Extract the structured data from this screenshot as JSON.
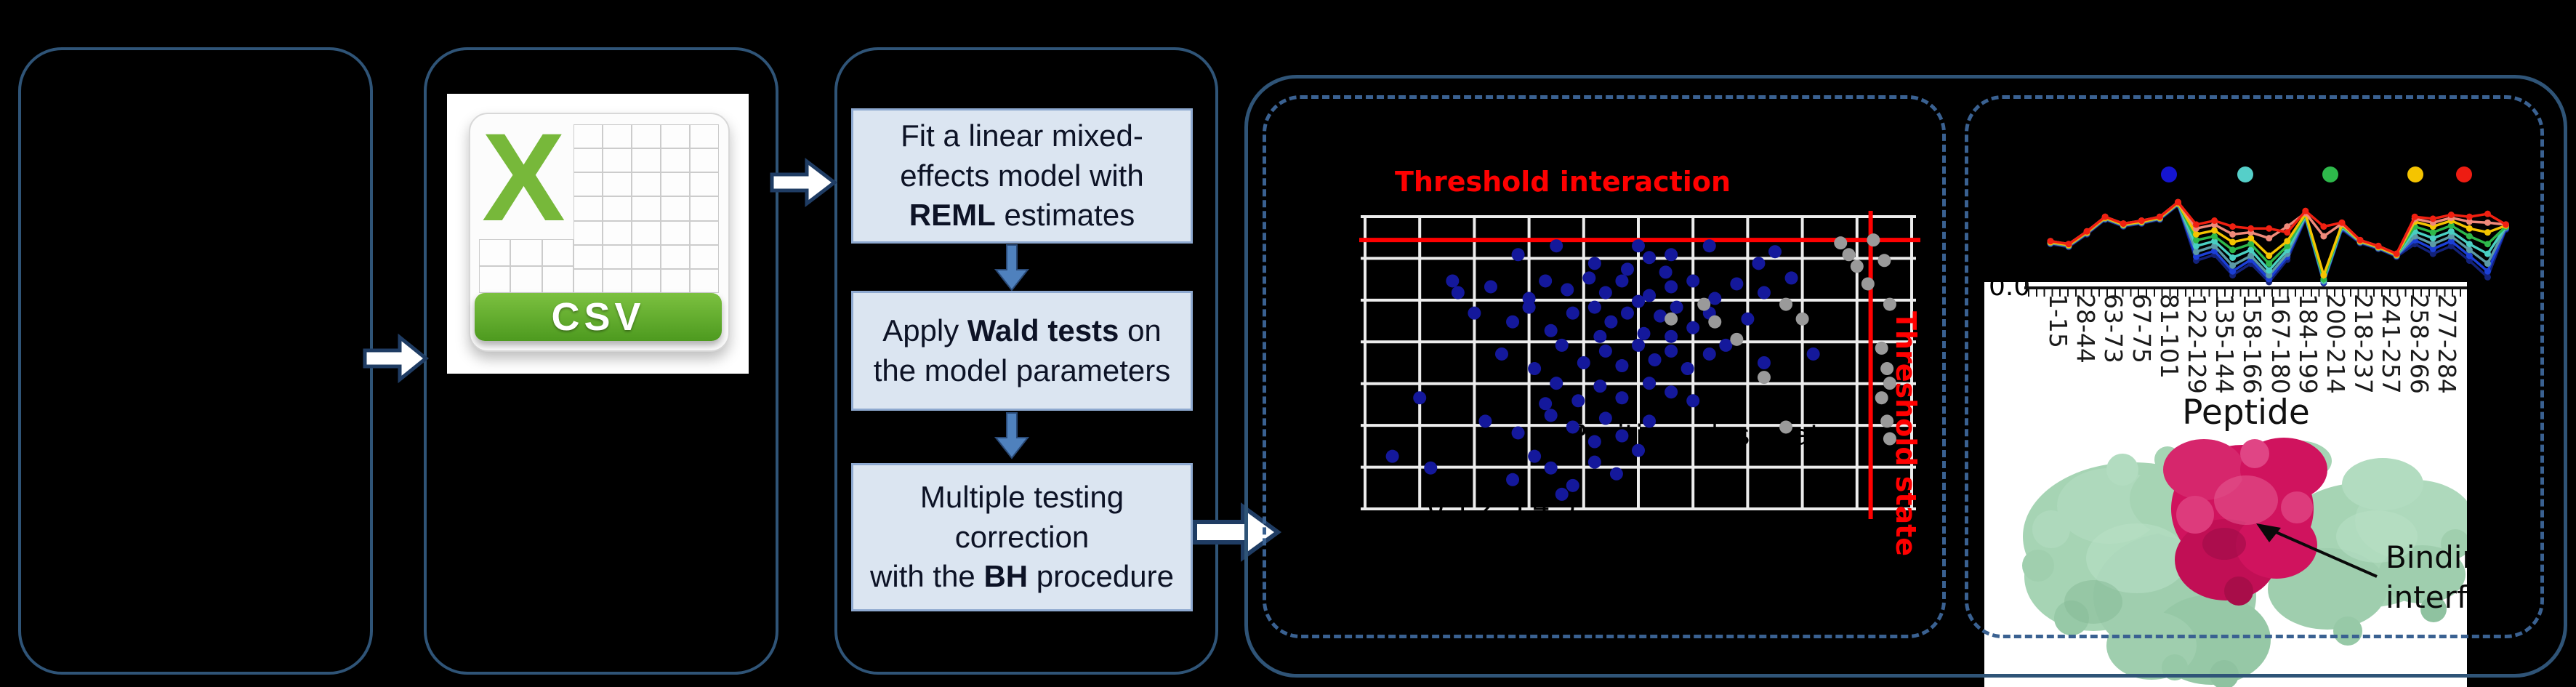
{
  "colors": {
    "background": "#000000",
    "box_border": "#2f5477",
    "dashed_border": "#3a6191",
    "step_fill": "#dbe5f1",
    "step_border": "#8ea9d0",
    "step_text": "#0d1326",
    "flow_arrow_fill": "#ffffff",
    "flow_arrow_stroke": "#1f3c63",
    "down_arrow_fill": "#4f81bd",
    "threshold_red": "#ff0000",
    "scatter_point_blue": "#14189b",
    "scatter_point_gray": "#9a9a9a",
    "grid_line": "#ececec",
    "csv_green": "#77b83a"
  },
  "csv": {
    "x_glyph": "X",
    "banner_label": "CSV"
  },
  "pipeline": {
    "steps": [
      {
        "name": "fit-model",
        "lines": [
          [
            {
              "t": "Fit a linear mixed-",
              "b": false
            }
          ],
          [
            {
              "t": "effects model with",
              "b": false
            }
          ],
          [
            {
              "t": "REML",
              "b": true
            },
            {
              "t": " estimates",
              "b": false
            }
          ]
        ]
      },
      {
        "name": "wald-tests",
        "lines": [
          [
            {
              "t": "Apply ",
              "b": false
            },
            {
              "t": "Wald tests",
              "b": true
            },
            {
              "t": " on",
              "b": false
            }
          ],
          [
            {
              "t": "the model parameters",
              "b": false
            }
          ]
        ]
      },
      {
        "name": "multiple-testing",
        "lines": [
          [
            {
              "t": "Multiple testing",
              "b": false
            }
          ],
          [
            {
              "t": "correction",
              "b": false
            }
          ],
          [
            {
              "t": "with the ",
              "b": false
            },
            {
              "t": "BH",
              "b": true
            },
            {
              "t": " procedure",
              "b": false
            }
          ]
        ]
      }
    ]
  },
  "chart_data": [
    {
      "id": "interaction_scatter",
      "type": "scatter",
      "title": "Threshold interaction",
      "state_label": "Threshold state",
      "grid": {
        "cols": 10,
        "rows": 7,
        "line_color": "#ececec"
      },
      "threshold_interaction_y": 0.08,
      "threshold_state_x": 0.925,
      "ghost_labels": [
        {
          "text": "Position: close data",
          "x": 0.62,
          "y": 0.78
        },
        {
          "text": "0 1 2 3 4 5",
          "x": 0.25,
          "y": 1.02
        }
      ],
      "series": [
        {
          "name": "significant-peptides",
          "color": "#14189b",
          "points": [
            [
              0.28,
              0.13
            ],
            [
              0.35,
              0.1
            ],
            [
              0.42,
              0.16
            ],
            [
              0.5,
              0.1
            ],
            [
              0.52,
              0.14
            ],
            [
              0.56,
              0.13
            ],
            [
              0.63,
              0.1
            ],
            [
              0.75,
              0.12
            ],
            [
              0.48,
              0.18
            ],
            [
              0.72,
              0.16
            ],
            [
              0.55,
              0.19
            ],
            [
              0.16,
              0.22
            ],
            [
              0.17,
              0.26
            ],
            [
              0.23,
              0.24
            ],
            [
              0.3,
              0.28
            ],
            [
              0.33,
              0.22
            ],
            [
              0.37,
              0.25
            ],
            [
              0.41,
              0.21
            ],
            [
              0.44,
              0.26
            ],
            [
              0.47,
              0.22
            ],
            [
              0.52,
              0.27
            ],
            [
              0.56,
              0.24
            ],
            [
              0.6,
              0.22
            ],
            [
              0.64,
              0.28
            ],
            [
              0.68,
              0.23
            ],
            [
              0.73,
              0.26
            ],
            [
              0.78,
              0.21
            ],
            [
              0.5,
              0.29
            ],
            [
              0.2,
              0.33
            ],
            [
              0.27,
              0.36
            ],
            [
              0.3,
              0.31
            ],
            [
              0.34,
              0.39
            ],
            [
              0.38,
              0.33
            ],
            [
              0.42,
              0.31
            ],
            [
              0.45,
              0.36
            ],
            [
              0.48,
              0.33
            ],
            [
              0.51,
              0.4
            ],
            [
              0.54,
              0.34
            ],
            [
              0.57,
              0.31
            ],
            [
              0.6,
              0.38
            ],
            [
              0.63,
              0.33
            ],
            [
              0.7,
              0.35
            ],
            [
              0.43,
              0.41
            ],
            [
              0.56,
              0.41
            ],
            [
              0.25,
              0.47
            ],
            [
              0.31,
              0.52
            ],
            [
              0.36,
              0.44
            ],
            [
              0.4,
              0.5
            ],
            [
              0.44,
              0.46
            ],
            [
              0.47,
              0.51
            ],
            [
              0.5,
              0.44
            ],
            [
              0.53,
              0.49
            ],
            [
              0.56,
              0.46
            ],
            [
              0.59,
              0.52
            ],
            [
              0.63,
              0.47
            ],
            [
              0.66,
              0.44
            ],
            [
              0.82,
              0.47
            ],
            [
              0.73,
              0.5
            ],
            [
              0.1,
              0.62
            ],
            [
              0.35,
              0.57
            ],
            [
              0.39,
              0.63
            ],
            [
              0.43,
              0.58
            ],
            [
              0.47,
              0.62
            ],
            [
              0.52,
              0.57
            ],
            [
              0.56,
              0.6
            ],
            [
              0.33,
              0.64
            ],
            [
              0.6,
              0.63
            ],
            [
              0.22,
              0.7
            ],
            [
              0.28,
              0.74
            ],
            [
              0.34,
              0.68
            ],
            [
              0.38,
              0.72
            ],
            [
              0.44,
              0.69
            ],
            [
              0.47,
              0.75
            ],
            [
              0.52,
              0.7
            ],
            [
              0.42,
              0.77
            ],
            [
              0.05,
              0.82
            ],
            [
              0.12,
              0.86
            ],
            [
              0.27,
              0.9
            ],
            [
              0.31,
              0.82
            ],
            [
              0.34,
              0.86
            ],
            [
              0.38,
              0.92
            ],
            [
              0.42,
              0.84
            ],
            [
              0.46,
              0.88
            ],
            [
              0.5,
              0.8
            ],
            [
              0.36,
              0.95
            ]
          ]
        },
        {
          "name": "non-significant-peptides",
          "color": "#9a9a9a",
          "points": [
            [
              0.62,
              0.3
            ],
            [
              0.64,
              0.36
            ],
            [
              0.56,
              0.35
            ],
            [
              0.77,
              0.3
            ],
            [
              0.8,
              0.35
            ],
            [
              0.68,
              0.42
            ],
            [
              0.73,
              0.55
            ],
            [
              0.87,
              0.09
            ],
            [
              0.885,
              0.13
            ],
            [
              0.9,
              0.17
            ],
            [
              0.93,
              0.08
            ],
            [
              0.95,
              0.15
            ],
            [
              0.92,
              0.23
            ],
            [
              0.96,
              0.3
            ],
            [
              0.945,
              0.45
            ],
            [
              0.955,
              0.52
            ],
            [
              0.96,
              0.57
            ],
            [
              0.945,
              0.62
            ],
            [
              0.955,
              0.7
            ],
            [
              0.96,
              0.76
            ],
            [
              0.77,
              0.72
            ]
          ]
        }
      ]
    },
    {
      "id": "uptake_line_chart",
      "type": "line",
      "xlabel": "Peptide",
      "y_tick_label": "0.0",
      "x_tick_labels": [
        "1-15",
        "28-44",
        "63-73",
        "67-75",
        "81-101",
        "122-129",
        "135-144",
        "158-166",
        "167-180",
        "184-199",
        "200-214",
        "218-237",
        "241-257",
        "258-266",
        "277-284"
      ],
      "legend_dots": [
        "#1515d0",
        "#55cfc9",
        "#2eb84b",
        "#f5c400",
        "#ee1c12"
      ],
      "series": [
        {
          "name": "t-navy",
          "color": "#13227a",
          "values": [
            0.42,
            0.39,
            0.52,
            0.67,
            0.6,
            0.63,
            0.67,
            0.82,
            0.25,
            0.31,
            0.1,
            0.22,
            0.03,
            0.26,
            0.68,
            0.02,
            0.57,
            0.43,
            0.37,
            0.29,
            0.42,
            0.32,
            0.4,
            0.25,
            0.08,
            0.57
          ]
        },
        {
          "name": "t-blue",
          "color": "#1b3fd6",
          "values": [
            0.43,
            0.4,
            0.53,
            0.68,
            0.61,
            0.64,
            0.68,
            0.83,
            0.29,
            0.35,
            0.14,
            0.26,
            0.06,
            0.29,
            0.69,
            0.03,
            0.58,
            0.44,
            0.38,
            0.3,
            0.46,
            0.37,
            0.45,
            0.3,
            0.14,
            0.58
          ]
        },
        {
          "name": "t-cadet",
          "color": "#5b9aa6",
          "values": [
            0.43,
            0.4,
            0.53,
            0.68,
            0.61,
            0.64,
            0.68,
            0.83,
            0.34,
            0.4,
            0.2,
            0.3,
            0.1,
            0.32,
            0.7,
            0.04,
            0.59,
            0.44,
            0.38,
            0.3,
            0.5,
            0.42,
            0.5,
            0.36,
            0.22,
            0.59
          ]
        },
        {
          "name": "t-cyan",
          "color": "#49cfc2",
          "values": [
            0.44,
            0.41,
            0.54,
            0.69,
            0.62,
            0.65,
            0.69,
            0.84,
            0.4,
            0.45,
            0.28,
            0.36,
            0.15,
            0.36,
            0.71,
            0.05,
            0.6,
            0.45,
            0.39,
            0.31,
            0.55,
            0.48,
            0.55,
            0.42,
            0.32,
            0.6
          ]
        },
        {
          "name": "t-green",
          "color": "#2eb84b",
          "values": [
            0.44,
            0.41,
            0.54,
            0.69,
            0.62,
            0.65,
            0.69,
            0.84,
            0.46,
            0.5,
            0.36,
            0.42,
            0.22,
            0.4,
            0.72,
            0.06,
            0.61,
            0.45,
            0.39,
            0.31,
            0.6,
            0.54,
            0.61,
            0.5,
            0.42,
            0.6
          ]
        },
        {
          "name": "t-yellow",
          "color": "#f5c400",
          "values": [
            0.44,
            0.41,
            0.54,
            0.69,
            0.62,
            0.65,
            0.69,
            0.84,
            0.52,
            0.56,
            0.44,
            0.48,
            0.3,
            0.45,
            0.73,
            0.1,
            0.62,
            0.45,
            0.39,
            0.31,
            0.65,
            0.6,
            0.66,
            0.58,
            0.54,
            0.61
          ]
        },
        {
          "name": "t-salmon",
          "color": "#f08a7a",
          "values": [
            0.45,
            0.42,
            0.55,
            0.7,
            0.63,
            0.66,
            0.7,
            0.85,
            0.58,
            0.62,
            0.52,
            0.54,
            0.48,
            0.6,
            0.74,
            0.5,
            0.63,
            0.46,
            0.4,
            0.32,
            0.68,
            0.64,
            0.69,
            0.65,
            0.64,
            0.62
          ]
        },
        {
          "name": "t-red",
          "color": "#f02011",
          "values": [
            0.45,
            0.42,
            0.55,
            0.7,
            0.63,
            0.66,
            0.7,
            0.85,
            0.62,
            0.66,
            0.6,
            0.58,
            0.58,
            0.54,
            0.76,
            0.6,
            0.64,
            0.46,
            0.4,
            0.32,
            0.7,
            0.68,
            0.72,
            0.7,
            0.73,
            0.62
          ]
        }
      ]
    }
  ],
  "protein": {
    "caption": "Binding interface"
  }
}
